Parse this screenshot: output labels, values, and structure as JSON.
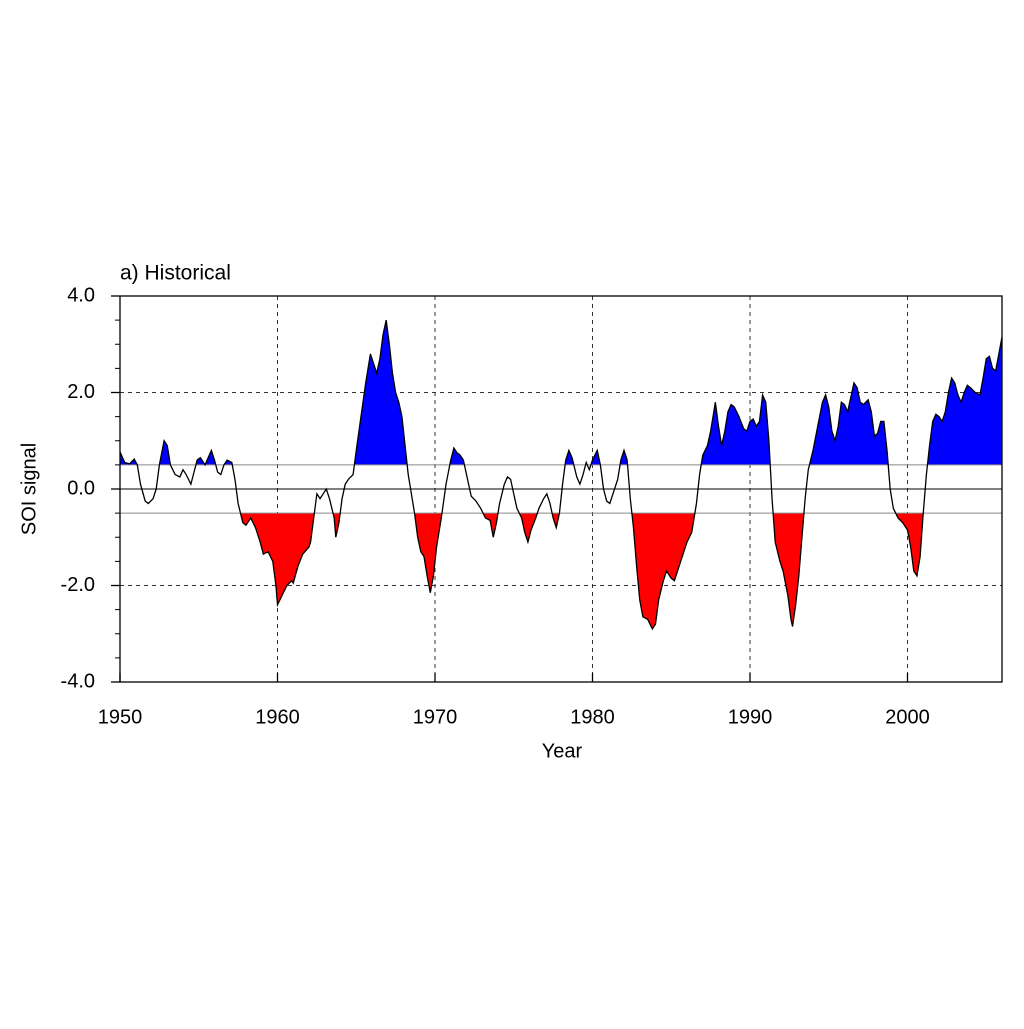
{
  "chart_data": {
    "type": "threshold-line",
    "title": "a) Historical",
    "xlabel": "Year",
    "ylabel": "SOI signal",
    "x": [
      1950.0,
      1950.3,
      1950.6,
      1950.9,
      1951.1,
      1951.3,
      1951.6,
      1951.8,
      1952.1,
      1952.3,
      1952.5,
      1952.8,
      1953.0,
      1953.2,
      1953.5,
      1953.8,
      1954.0,
      1954.2,
      1954.5,
      1954.7,
      1954.9,
      1955.1,
      1955.4,
      1955.6,
      1955.8,
      1956.0,
      1956.2,
      1956.4,
      1956.6,
      1956.8,
      1957.1,
      1957.3,
      1957.5,
      1957.8,
      1958.0,
      1958.3,
      1958.6,
      1958.9,
      1959.1,
      1959.4,
      1959.7,
      1959.9,
      1960.0,
      1960.3,
      1960.6,
      1960.9,
      1961.0,
      1961.3,
      1961.6,
      1962.0,
      1962.1,
      1962.3,
      1962.5,
      1962.7,
      1962.9,
      1963.1,
      1963.3,
      1963.6,
      1963.7,
      1963.9,
      1964.1,
      1964.3,
      1964.5,
      1964.8,
      1965.0,
      1965.3,
      1965.6,
      1965.9,
      1966.1,
      1966.3,
      1966.5,
      1966.7,
      1966.9,
      1967.1,
      1967.3,
      1967.5,
      1967.7,
      1967.9,
      1968.1,
      1968.3,
      1968.5,
      1968.7,
      1968.9,
      1969.1,
      1969.3,
      1969.5,
      1969.7,
      1969.9,
      1970.1,
      1970.4,
      1970.7,
      1971.0,
      1971.2,
      1971.4,
      1971.6,
      1971.8,
      1972.0,
      1972.3,
      1972.6,
      1972.9,
      1973.2,
      1973.5,
      1973.7,
      1973.9,
      1974.1,
      1974.4,
      1974.6,
      1974.8,
      1975.0,
      1975.2,
      1975.5,
      1975.7,
      1975.9,
      1976.1,
      1976.4,
      1976.6,
      1976.9,
      1977.1,
      1977.3,
      1977.5,
      1977.7,
      1977.9,
      1978.1,
      1978.3,
      1978.5,
      1978.7,
      1979.0,
      1979.2,
      1979.4,
      1979.6,
      1979.8,
      1980.0,
      1980.3,
      1980.5,
      1980.7,
      1980.9,
      1981.1,
      1981.3,
      1981.6,
      1981.8,
      1982.0,
      1982.2,
      1982.4,
      1982.6,
      1982.8,
      1983.0,
      1983.2,
      1983.5,
      1983.8,
      1984.0,
      1984.2,
      1984.5,
      1984.7,
      1985.0,
      1985.2,
      1985.5,
      1985.8,
      1986.0,
      1986.3,
      1986.6,
      1986.8,
      1987.0,
      1987.3,
      1987.5,
      1987.7,
      1987.8,
      1988.0,
      1988.2,
      1988.4,
      1988.6,
      1988.8,
      1989.0,
      1989.3,
      1989.6,
      1989.8,
      1990.0,
      1990.2,
      1990.4,
      1990.6,
      1990.8,
      1991.0,
      1991.2,
      1991.4,
      1991.6,
      1991.9,
      1992.1,
      1992.4,
      1992.6,
      1992.7,
      1992.9,
      1993.1,
      1993.3,
      1993.5,
      1993.7,
      1994.0,
      1994.3,
      1994.6,
      1994.8,
      1995.0,
      1995.2,
      1995.4,
      1995.6,
      1995.8,
      1996.0,
      1996.2,
      1996.4,
      1996.6,
      1996.8,
      1997.0,
      1997.2,
      1997.5,
      1997.7,
      1997.9,
      1998.1,
      1998.3,
      1998.5,
      1998.7,
      1998.9,
      1999.1,
      1999.4,
      1999.7,
      2000.0,
      2000.2,
      2000.4,
      2000.6,
      2000.8,
      2001.0,
      2001.2,
      2001.4,
      2001.6,
      2001.8,
      2002.0,
      2002.2,
      2002.4,
      2002.6,
      2002.8,
      2003.0,
      2003.2,
      2003.4,
      2003.6,
      2003.8,
      2004.0,
      2004.3,
      2004.6,
      2004.8,
      2005.0,
      2005.2,
      2005.4,
      2005.6,
      2005.8,
      2006.0
    ],
    "values": [
      0.77,
      0.55,
      0.52,
      0.62,
      0.5,
      0.1,
      -0.25,
      -0.3,
      -0.2,
      0.0,
      0.5,
      1.0,
      0.9,
      0.5,
      0.3,
      0.25,
      0.4,
      0.3,
      0.1,
      0.35,
      0.6,
      0.65,
      0.5,
      0.65,
      0.8,
      0.6,
      0.35,
      0.3,
      0.5,
      0.6,
      0.55,
      0.2,
      -0.3,
      -0.7,
      -0.75,
      -0.6,
      -0.8,
      -1.1,
      -1.35,
      -1.3,
      -1.5,
      -2.0,
      -2.4,
      -2.2,
      -2.0,
      -1.9,
      -1.95,
      -1.6,
      -1.35,
      -1.2,
      -1.1,
      -0.6,
      -0.1,
      -0.2,
      -0.1,
      0.0,
      -0.2,
      -0.6,
      -1.0,
      -0.7,
      -0.2,
      0.1,
      0.2,
      0.3,
      0.8,
      1.5,
      2.2,
      2.8,
      2.6,
      2.4,
      2.7,
      3.2,
      3.5,
      3.0,
      2.4,
      2.0,
      1.8,
      1.5,
      0.9,
      0.3,
      -0.1,
      -0.5,
      -1.0,
      -1.3,
      -1.4,
      -1.8,
      -2.15,
      -1.8,
      -1.2,
      -0.6,
      0.1,
      0.6,
      0.85,
      0.75,
      0.7,
      0.6,
      0.3,
      -0.15,
      -0.25,
      -0.4,
      -0.6,
      -0.65,
      -1.0,
      -0.7,
      -0.3,
      0.1,
      0.25,
      0.2,
      -0.1,
      -0.4,
      -0.6,
      -0.9,
      -1.1,
      -0.85,
      -0.6,
      -0.4,
      -0.2,
      -0.1,
      -0.3,
      -0.6,
      -0.8,
      -0.5,
      0.1,
      0.6,
      0.8,
      0.65,
      0.25,
      0.1,
      0.3,
      0.55,
      0.4,
      0.6,
      0.8,
      0.5,
      0.0,
      -0.25,
      -0.3,
      -0.1,
      0.2,
      0.6,
      0.8,
      0.6,
      -0.2,
      -0.8,
      -1.6,
      -2.3,
      -2.65,
      -2.7,
      -2.9,
      -2.8,
      -2.3,
      -1.9,
      -1.7,
      -1.85,
      -1.9,
      -1.6,
      -1.3,
      -1.1,
      -0.9,
      -0.3,
      0.3,
      0.7,
      0.9,
      1.2,
      1.6,
      1.8,
      1.3,
      0.9,
      1.2,
      1.6,
      1.75,
      1.7,
      1.5,
      1.25,
      1.2,
      1.4,
      1.45,
      1.3,
      1.4,
      1.95,
      1.8,
      1.0,
      -0.2,
      -1.1,
      -1.5,
      -1.7,
      -2.2,
      -2.7,
      -2.85,
      -2.4,
      -1.8,
      -1.0,
      -0.2,
      0.4,
      0.8,
      1.3,
      1.8,
      1.95,
      1.7,
      1.2,
      1.0,
      1.3,
      1.8,
      1.75,
      1.6,
      1.9,
      2.2,
      2.1,
      1.8,
      1.75,
      1.85,
      1.6,
      1.1,
      1.15,
      1.4,
      1.4,
      0.8,
      0.0,
      -0.4,
      -0.6,
      -0.7,
      -0.85,
      -1.2,
      -1.7,
      -1.8,
      -1.4,
      -0.5,
      0.3,
      0.9,
      1.4,
      1.55,
      1.5,
      1.4,
      1.6,
      2.0,
      2.3,
      2.2,
      1.95,
      1.8,
      2.0,
      2.15,
      2.1,
      2.0,
      1.95,
      2.3,
      2.7,
      2.75,
      2.5,
      2.45,
      2.8,
      3.15
    ],
    "color": "#000000",
    "fill_above": {
      "threshold": 0.5,
      "color": "#0000ff"
    },
    "fill_below": {
      "threshold": -0.5,
      "color": "#ff0000"
    },
    "zero_line": true,
    "xlim": [
      1950,
      2006
    ],
    "ylim": [
      -4.0,
      4.0
    ],
    "xticks": [
      1950,
      1960,
      1970,
      1980,
      1990,
      2000
    ],
    "yticks": [
      {
        "value": -4.0,
        "label": "-4.0"
      },
      {
        "value": -2.0,
        "label": "-2.0"
      },
      {
        "value": 0.0,
        "label": "0.0"
      },
      {
        "value": 2.0,
        "label": "2.0"
      },
      {
        "value": 4.0,
        "label": "4.0"
      }
    ],
    "yminorticks": [
      -3.5,
      -3.0,
      -2.5,
      -1.5,
      -1.0,
      -0.5,
      0.5,
      1.0,
      1.5,
      2.5,
      3.0,
      3.5
    ],
    "grid": true
  }
}
